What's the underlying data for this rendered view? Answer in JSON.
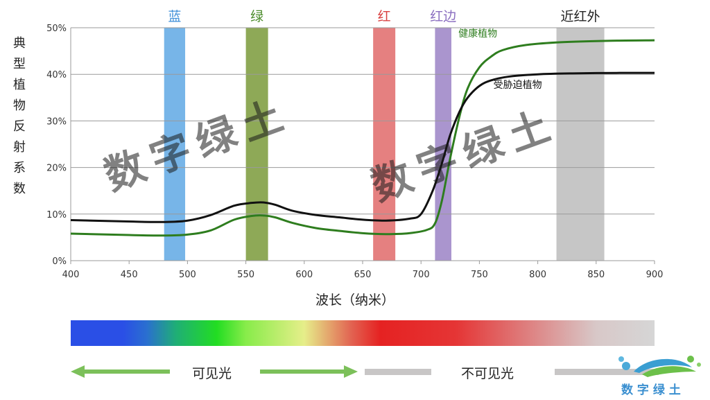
{
  "chart_data": {
    "type": "line",
    "ylabel": "典型植物反射系数",
    "xlabel": "波长（纳米）",
    "xlim": [
      400,
      900
    ],
    "ylim": [
      0,
      50
    ],
    "x_ticks": [
      "400",
      "450",
      "500",
      "550",
      "600",
      "650",
      "700",
      "750",
      "800",
      "850",
      "900"
    ],
    "y_ticks": [
      "0%",
      "10%",
      "20%",
      "30%",
      "40%",
      "50%"
    ],
    "grid": "horizontal",
    "bands": [
      {
        "label": "蓝",
        "x0": 480,
        "x1": 498,
        "color": "#5fa8e4",
        "label_color": "#3f8fd8"
      },
      {
        "label": "绿",
        "x0": 550,
        "x1": 569,
        "color": "#7a9a3a",
        "label_color": "#4c8c2c"
      },
      {
        "label": "红",
        "x0": 659,
        "x1": 678,
        "color": "#e06a6a",
        "label_color": "#d94040"
      },
      {
        "label": "红边",
        "x0": 712,
        "x1": 726,
        "color": "#9b82c6",
        "label_color": "#8a6ec0"
      },
      {
        "label": "近红外",
        "x0": 816,
        "x1": 857,
        "color": "#bcbcbc",
        "label_color": "#222222"
      }
    ],
    "series": [
      {
        "name": "健康植物",
        "color": "#2e7d1e",
        "x": [
          400,
          450,
          480,
          500,
          520,
          540,
          555,
          565,
          575,
          590,
          610,
          630,
          650,
          670,
          690,
          705,
          712,
          718,
          725,
          733,
          740,
          750,
          760,
          770,
          790,
          820,
          860,
          900
        ],
        "y": [
          5.8,
          5.5,
          5.4,
          5.6,
          6.5,
          8.8,
          9.6,
          9.7,
          9.3,
          8.1,
          7.0,
          6.4,
          5.9,
          5.7,
          5.9,
          6.6,
          8.0,
          13,
          22,
          31,
          37,
          41.5,
          43.8,
          45.2,
          46.3,
          46.9,
          47.2,
          47.3
        ]
      },
      {
        "name": "受胁迫植物",
        "color": "#111111",
        "x": [
          400,
          450,
          480,
          500,
          520,
          540,
          555,
          565,
          575,
          590,
          610,
          630,
          650,
          670,
          690,
          700,
          710,
          718,
          725,
          733,
          740,
          750,
          760,
          775,
          800,
          830,
          870,
          900
        ],
        "y": [
          8.7,
          8.4,
          8.3,
          8.6,
          9.8,
          11.8,
          12.4,
          12.5,
          12.0,
          10.7,
          9.8,
          9.3,
          8.8,
          8.6,
          9.0,
          10.0,
          15,
          21,
          27,
          32,
          35,
          37.5,
          38.7,
          39.5,
          40.0,
          40.2,
          40.3,
          40.3
        ]
      }
    ],
    "annotations": [
      {
        "text": "健康植物",
        "x": 732,
        "y": 48.8,
        "color": "#2e7d1e"
      },
      {
        "text": "受胁迫植物",
        "x": 762,
        "y": 37.8,
        "color": "#111111"
      }
    ]
  },
  "spectrum_labels": {
    "visible": "可见光",
    "invisible": "不可见光"
  },
  "watermark": "数字绿土",
  "logo_text": "数 字 绿 土",
  "colors": {
    "arrow_green": "#7cc05a",
    "arrow_gray": "#c8c6c6"
  }
}
